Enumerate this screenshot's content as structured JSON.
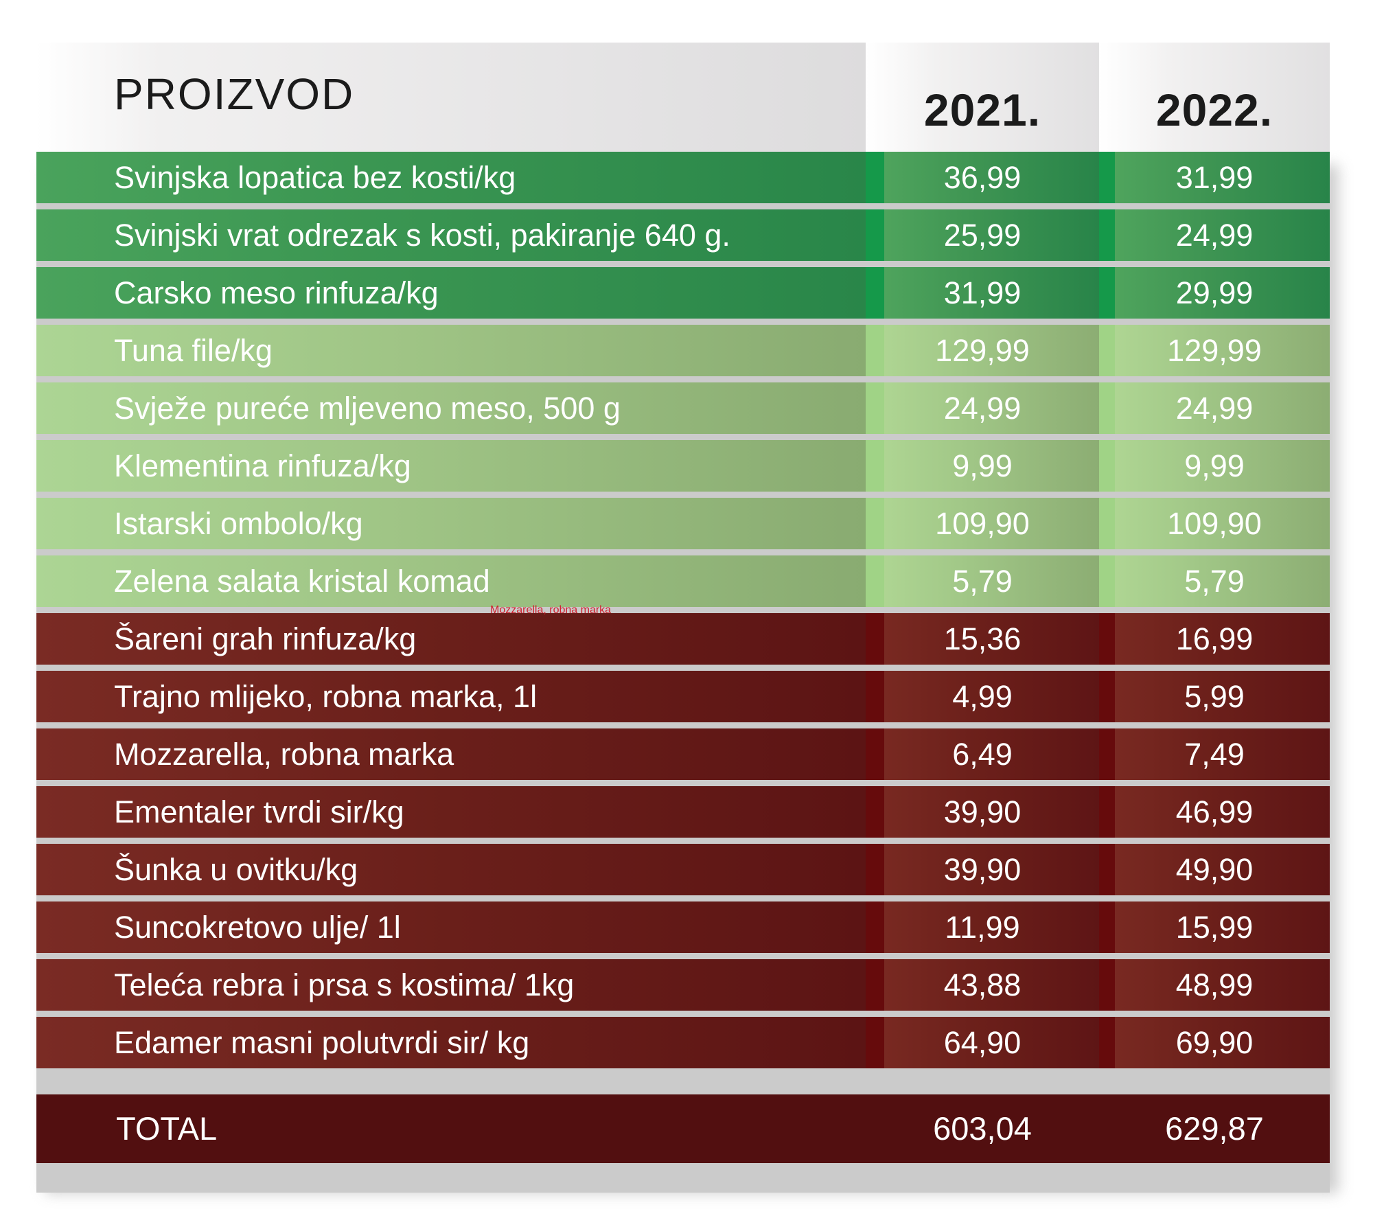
{
  "header": {
    "product": "PROIZVOD",
    "year1": "2021.",
    "year2": "2022."
  },
  "rows": [
    {
      "product": "Svinjska lopatica bez kosti/kg",
      "y2021": "36,99",
      "y2022": "31,99",
      "group": "dark-green"
    },
    {
      "product": "Svinjski vrat odrezak s kosti, pakiranje 640 g.",
      "y2021": "25,99",
      "y2022": "24,99",
      "group": "dark-green"
    },
    {
      "product": "Carsko meso rinfuza/kg",
      "y2021": "31,99",
      "y2022": "29,99",
      "group": "dark-green"
    },
    {
      "product": "Tuna file/kg",
      "y2021": "129,99",
      "y2022": "129,99",
      "group": "light-green"
    },
    {
      "product": "Svježe pureće mljeveno meso, 500 g",
      "y2021": "24,99",
      "y2022": "24,99",
      "group": "light-green"
    },
    {
      "product": "Klementina rinfuza/kg",
      "y2021": "9,99",
      "y2022": "9,99",
      "group": "light-green"
    },
    {
      "product": "Istarski ombolo/kg",
      "y2021": "109,90",
      "y2022": "109,90",
      "group": "light-green"
    },
    {
      "product": "Zelena salata kristal komad",
      "y2021": "5,79",
      "y2022": "5,79",
      "group": "light-green"
    },
    {
      "product": "Šareni grah rinfuza/kg",
      "y2021": "15,36",
      "y2022": "16,99",
      "group": "red"
    },
    {
      "product": "Trajno mlijeko, robna marka, 1l",
      "y2021": "4,99",
      "y2022": "5,99",
      "group": "red"
    },
    {
      "product": "Mozzarella, robna marka",
      "y2021": "6,49",
      "y2022": "7,49",
      "group": "red"
    },
    {
      "product": "Ementaler tvrdi sir/kg",
      "y2021": "39,90",
      "y2022": "46,99",
      "group": "red"
    },
    {
      "product": "Šunka u ovitku/kg",
      "y2021": "39,90",
      "y2022": "49,90",
      "group": "red"
    },
    {
      "product": "Suncokretovo ulje/ 1l",
      "y2021": "11,99",
      "y2022": "15,99",
      "group": "red"
    },
    {
      "product": "Teleća rebra i prsa s kostima/ 1kg",
      "y2021": "43,88",
      "y2022": "48,99",
      "group": "red"
    },
    {
      "product": "Edamer masni polutvrdi sir/ kg",
      "y2021": "64,90",
      "y2022": "69,90",
      "group": "red"
    }
  ],
  "total": {
    "label": "TOTAL",
    "y2021": "603,04",
    "y2022": "629,87"
  },
  "stray_label": "Mozzarella, robna marka",
  "colors": {
    "dark_green": "#3b9652",
    "light_green": "#9fc485",
    "red": "#6a1f1a",
    "total": "#520f10",
    "stray_text": "#d0202e"
  }
}
